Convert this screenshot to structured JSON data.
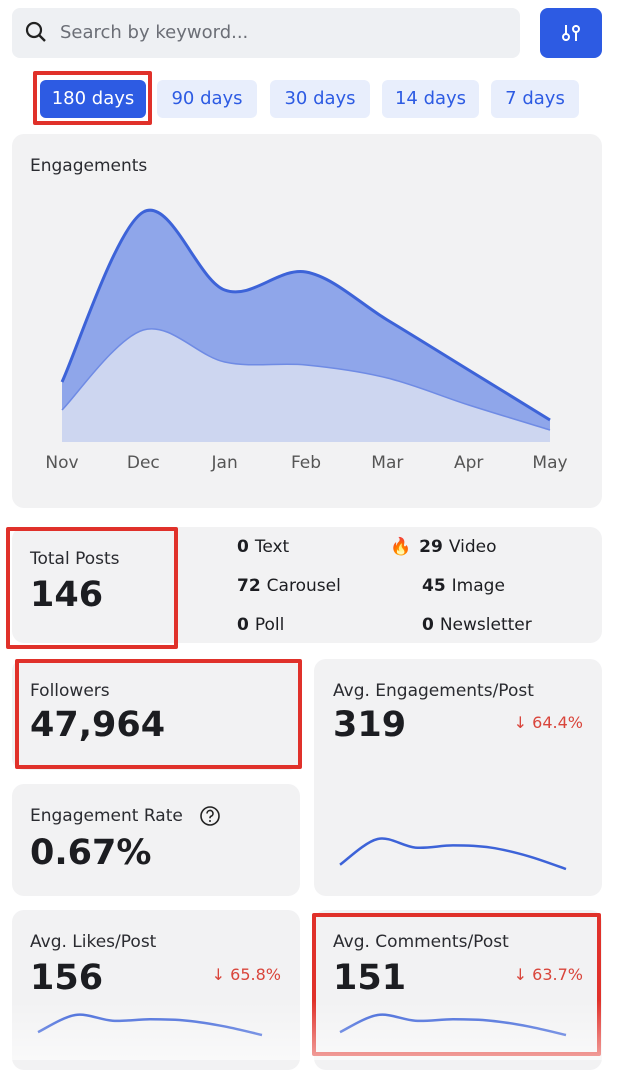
{
  "search": {
    "placeholder": "Search by keyword..."
  },
  "tabs": [
    "180 days",
    "90 days",
    "30 days",
    "14 days",
    "7 days"
  ],
  "engagements": {
    "type": "area",
    "title": "Engagements",
    "categories": [
      "Nov",
      "Dec",
      "Jan",
      "Feb",
      "Mar",
      "Apr",
      "May"
    ],
    "series": [
      {
        "color": "#cdd6f0",
        "values": [
          32,
          112,
          80,
          77,
          64,
          37,
          12
        ]
      },
      {
        "color": "#8fa6ea",
        "values": [
          28,
          118,
          72,
          93,
          58,
          35,
          10
        ]
      }
    ]
  },
  "posts": {
    "title": "Total Posts",
    "total": "146",
    "items": [
      {
        "count": "0",
        "label": "Text"
      },
      {
        "icon": "🔥",
        "count": "29",
        "label": "Video"
      },
      {
        "count": "72",
        "label": "Carousel"
      },
      {
        "count": "45",
        "label": "Image"
      },
      {
        "count": "0",
        "label": "Poll"
      },
      {
        "count": "0",
        "label": "Newsletter"
      }
    ]
  },
  "followers": {
    "title": "Followers",
    "value": "47,964"
  },
  "engagement_rate": {
    "title": "Engagement Rate",
    "value": "0.67%"
  },
  "avg_engagements": {
    "title": "Avg. Engagements/Post",
    "value": "319",
    "change": "↓ 64.4%",
    "spark": [
      2,
      8,
      6,
      6.5,
      6,
      4,
      1
    ]
  },
  "avg_likes": {
    "title": "Avg. Likes/Post",
    "value": "156",
    "change": "↓ 65.8%",
    "spark": [
      2,
      8,
      6,
      6.5,
      6,
      4,
      1
    ]
  },
  "avg_comments": {
    "title": "Avg. Comments/Post",
    "value": "151",
    "change": "↓ 63.7%",
    "spark": [
      2,
      8,
      6,
      6.5,
      6,
      4,
      1
    ]
  }
}
